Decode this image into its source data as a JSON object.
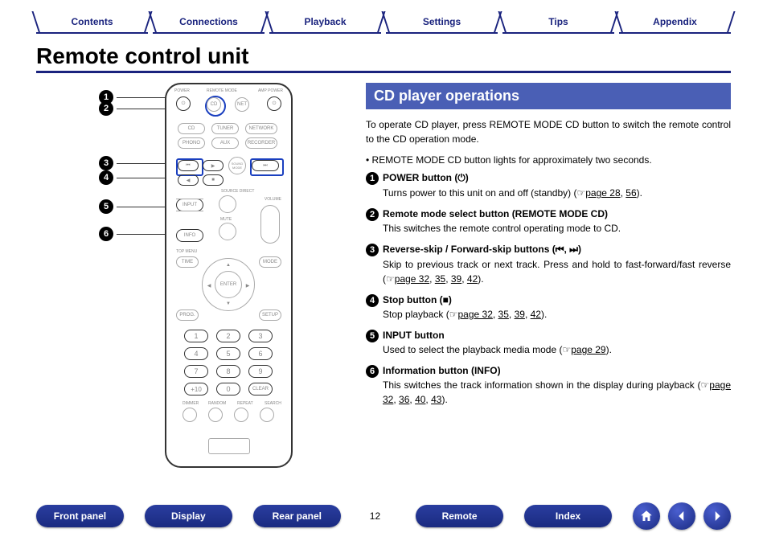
{
  "colors": {
    "accent": "#1a237e",
    "section": "#4a5fb5",
    "pill": "#1a2a80",
    "highlight": "#1a3fbf"
  },
  "tabs": [
    "Contents",
    "Connections",
    "Playback",
    "Settings",
    "Tips",
    "Appendix"
  ],
  "title": "Remote control unit",
  "section_title": "CD player operations",
  "intro": "To operate CD player, press REMOTE MODE CD button to switch the remote control to the CD operation mode.",
  "bullet": "REMOTE MODE CD button lights for approximately two seconds.",
  "items": [
    {
      "n": "1",
      "title": "POWER button (⏻)",
      "desc_before": "Turns power to this unit on and off (standby) (",
      "links": [
        "page 28",
        "56"
      ],
      "desc_after": ")."
    },
    {
      "n": "2",
      "title": "Remote mode select button (REMOTE MODE CD)",
      "desc_before": "This switches the remote control operating mode to CD.",
      "links": [],
      "desc_after": ""
    },
    {
      "n": "3",
      "title": "Reverse-skip / Forward-skip buttons (⏮, ⏭)",
      "desc_before": "Skip to previous track or next track. Press and hold to fast-forward/fast reverse (",
      "links": [
        "page 32",
        "35",
        "39",
        "42"
      ],
      "desc_after": ")."
    },
    {
      "n": "4",
      "title": "Stop button (■)",
      "desc_before": "Stop playback (",
      "links": [
        "page 32",
        "35",
        "39",
        "42"
      ],
      "desc_after": ")."
    },
    {
      "n": "5",
      "title": "INPUT button",
      "desc_before": "Used to select the playback media mode (",
      "links": [
        "page 29"
      ],
      "desc_after": ")."
    },
    {
      "n": "6",
      "title": "Information button (INFO)",
      "desc_before": "This switches the track information shown in the display during playback (",
      "links": [
        "page 32",
        "36",
        "40",
        "43"
      ],
      "desc_after": ")."
    }
  ],
  "page_number": "12",
  "bottom_nav": [
    "Front panel",
    "Display",
    "Rear panel",
    "Remote",
    "Index"
  ],
  "remote": {
    "labels": {
      "power": "POWER",
      "remote_mode": "REMOTE MODE",
      "amp_power": "AMP POWER",
      "cd": "CD",
      "net": "NET",
      "tuner": "TUNER",
      "network": "NETWORK",
      "phono": "PHONO",
      "aux": "AUX",
      "recorder": "RECORDER",
      "sound": "SOUND MODE",
      "source": "SOURCE DIRECT",
      "input": "INPUT",
      "volume": "VOLUME",
      "mute": "MUTE",
      "info": "INFO",
      "top_menu": "TOP MENU",
      "time": "TIME",
      "mode": "MODE",
      "enter": "ENTER",
      "prog": "PROG.",
      "setup": "SETUP",
      "plus10": "+10",
      "clear": "CLEAR",
      "dimmer": "DIMMER",
      "random": "RANDOM",
      "repeat": "REPEAT",
      "search": "SEARCH"
    },
    "keypad": [
      "1",
      "2",
      "3",
      "4",
      "5",
      "6",
      "7",
      "8",
      "9",
      "0"
    ],
    "callouts": [
      "1",
      "2",
      "3",
      "4",
      "5",
      "6"
    ]
  }
}
